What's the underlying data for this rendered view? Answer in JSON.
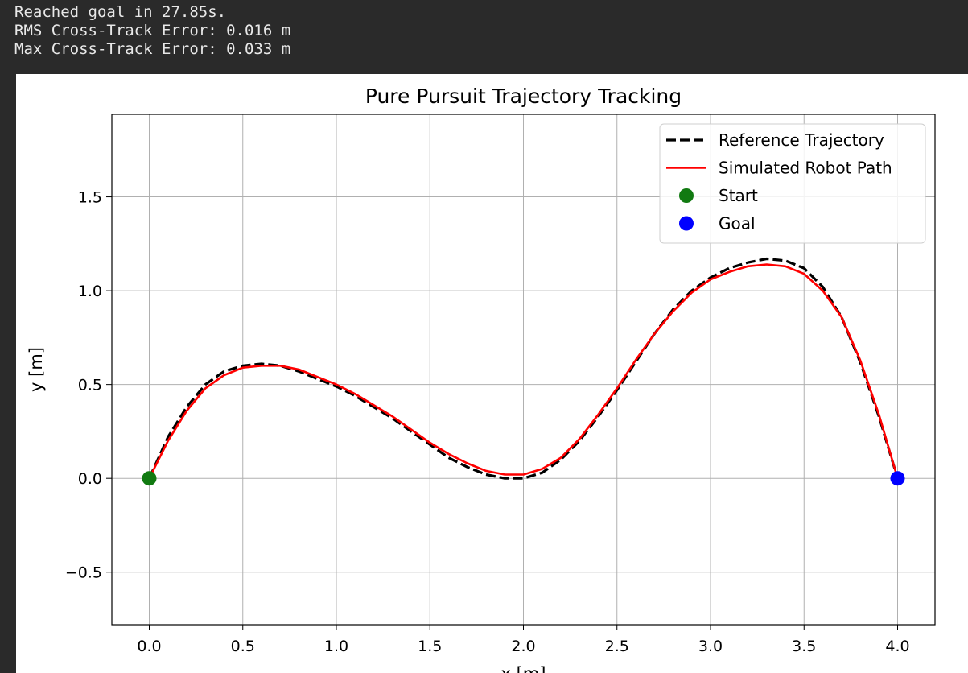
{
  "console": {
    "lines": [
      "Reached goal in 27.85s.",
      "RMS Cross-Track Error: 0.016 m",
      "Max Cross-Track Error: 0.033 m"
    ]
  },
  "chart_data": {
    "type": "line",
    "title": "Pure Pursuit Trajectory Tracking",
    "xlabel": "x [m]",
    "ylabel": "y [m]",
    "xlim": [
      -0.2,
      4.2
    ],
    "ylim": [
      -0.78,
      1.94
    ],
    "xticks": [
      "0.0",
      "0.5",
      "1.0",
      "1.5",
      "2.0",
      "2.5",
      "3.0",
      "3.5",
      "4.0"
    ],
    "yticks": [
      "−0.5",
      "0.0",
      "0.5",
      "1.0",
      "1.5"
    ],
    "grid": true,
    "legend_position": "top-right",
    "series": [
      {
        "name": "Reference Trajectory",
        "style": "dashed",
        "color": "#000000",
        "x": [
          0.0,
          0.1,
          0.2,
          0.3,
          0.4,
          0.5,
          0.6,
          0.7,
          0.8,
          0.9,
          1.0,
          1.1,
          1.2,
          1.3,
          1.4,
          1.5,
          1.6,
          1.7,
          1.8,
          1.9,
          2.0,
          2.1,
          2.2,
          2.3,
          2.4,
          2.5,
          2.6,
          2.7,
          2.8,
          2.9,
          3.0,
          3.1,
          3.2,
          3.3,
          3.4,
          3.5,
          3.6,
          3.7,
          3.8,
          3.9,
          4.0
        ],
        "y": [
          0.0,
          0.22,
          0.38,
          0.5,
          0.57,
          0.6,
          0.61,
          0.6,
          0.57,
          0.53,
          0.49,
          0.44,
          0.38,
          0.32,
          0.25,
          0.18,
          0.11,
          0.06,
          0.02,
          0.0,
          0.0,
          0.03,
          0.1,
          0.2,
          0.33,
          0.47,
          0.62,
          0.77,
          0.9,
          1.0,
          1.07,
          1.12,
          1.15,
          1.17,
          1.16,
          1.12,
          1.02,
          0.86,
          0.62,
          0.33,
          0.0
        ]
      },
      {
        "name": "Simulated Robot Path",
        "style": "solid",
        "color": "#ff0000",
        "x": [
          0.0,
          0.1,
          0.2,
          0.3,
          0.4,
          0.5,
          0.6,
          0.7,
          0.8,
          0.9,
          1.0,
          1.1,
          1.2,
          1.3,
          1.4,
          1.5,
          1.6,
          1.7,
          1.8,
          1.9,
          2.0,
          2.1,
          2.2,
          2.3,
          2.4,
          2.5,
          2.6,
          2.7,
          2.8,
          2.9,
          3.0,
          3.1,
          3.2,
          3.3,
          3.4,
          3.5,
          3.6,
          3.7,
          3.8,
          3.9,
          4.0
        ],
        "y": [
          0.0,
          0.2,
          0.36,
          0.48,
          0.55,
          0.59,
          0.6,
          0.6,
          0.58,
          0.54,
          0.5,
          0.45,
          0.39,
          0.33,
          0.26,
          0.19,
          0.13,
          0.08,
          0.04,
          0.02,
          0.02,
          0.05,
          0.11,
          0.21,
          0.34,
          0.48,
          0.63,
          0.77,
          0.89,
          0.99,
          1.06,
          1.1,
          1.13,
          1.14,
          1.13,
          1.09,
          1.0,
          0.86,
          0.63,
          0.34,
          0.0
        ]
      }
    ],
    "markers": [
      {
        "name": "Start",
        "x": 0.0,
        "y": 0.0,
        "color": "#117a11"
      },
      {
        "name": "Goal",
        "x": 4.0,
        "y": 0.0,
        "color": "#0000ff"
      }
    ]
  }
}
